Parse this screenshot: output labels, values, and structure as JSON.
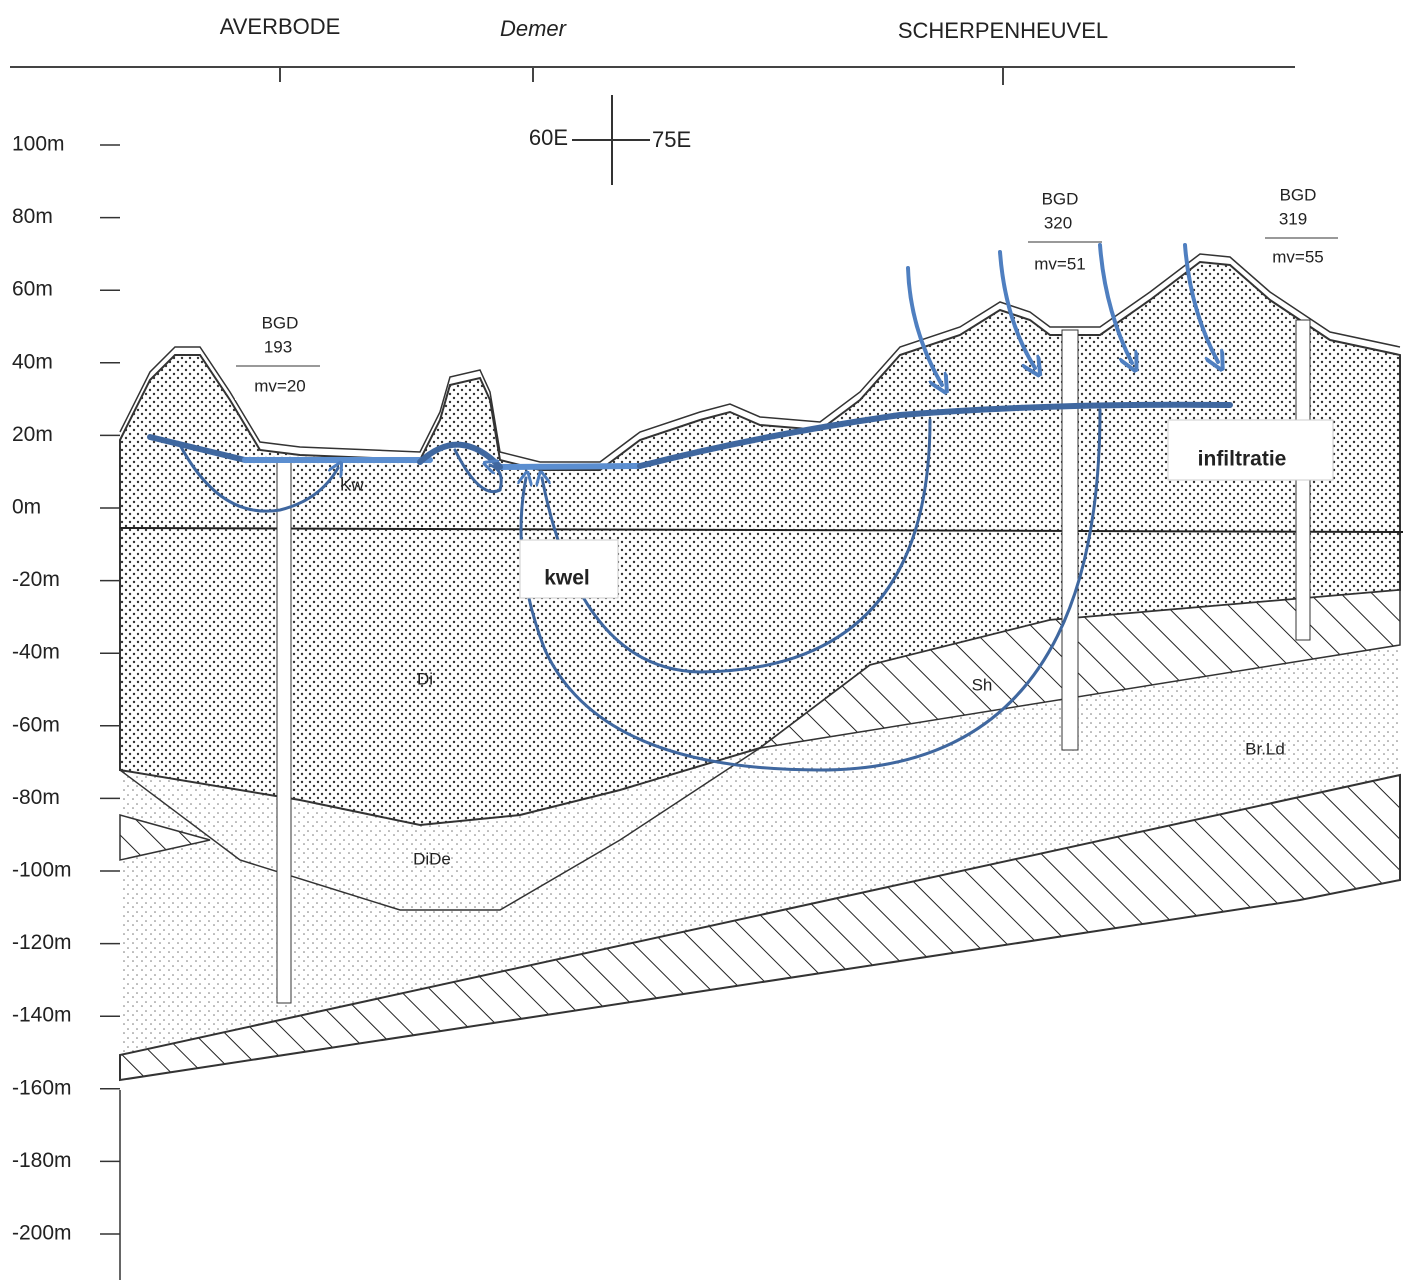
{
  "header": {
    "places": [
      "AVERBODE",
      "Demer",
      "SCHERPENHEUVEL"
    ]
  },
  "orientation": {
    "left": "60E",
    "right": "75E"
  },
  "depth_axis": {
    "labels": [
      "100m",
      "80m",
      "60m",
      "40m",
      "20m",
      "0m",
      "-20m",
      "-40m",
      "-60m",
      "-80m",
      "-100m",
      "-120m",
      "-140m",
      "-160m",
      "-180m",
      "-200m"
    ]
  },
  "boreholes": [
    {
      "name": "BGD",
      "number": "193",
      "surface": "mv=20"
    },
    {
      "name": "BGD",
      "number": "320",
      "surface": "mv=51"
    },
    {
      "name": "BGD",
      "number": "319",
      "surface": "mv=55"
    }
  ],
  "layers": [
    "Kw",
    "Di",
    "DiDe",
    "Sh",
    "Br.Ld"
  ],
  "annotations": {
    "seepage": "kwel",
    "infiltration": "infiltratie"
  }
}
